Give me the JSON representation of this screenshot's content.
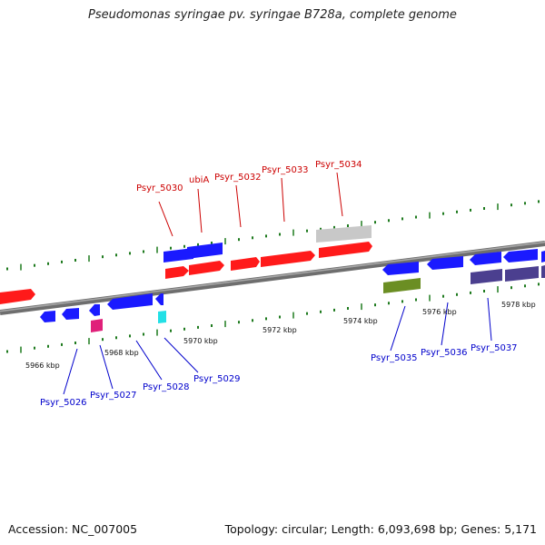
{
  "title": "Pseudomonas syringae pv. syringae B728a, complete genome",
  "footer": {
    "accession": "Accession: NC_007005",
    "summary": "Topology: circular; Length: 6,093,698 bp; Genes: 5,171"
  },
  "colors": {
    "forward_cds": "#ff1a1a",
    "forward_label": "#cc0000",
    "reverse_cds": "#1a1aff",
    "reverse_label": "#0000cc",
    "backbone": "#8a8a8a",
    "tick": "#1e7a1e",
    "gray_feature": "#c8c8c8",
    "olive_feature": "#6b8e23",
    "slate_feature": "#4b3f8f",
    "magenta_feature": "#e0207a",
    "cyan_feature": "#22e0e6"
  },
  "axis": {
    "tick_labels": [
      "5966 kbp",
      "5968 kbp",
      "5970 kbp",
      "5972 kbp",
      "5974 kbp",
      "5976 kbp",
      "5978 kbp"
    ]
  },
  "genes": {
    "forward": [
      "Psyr_5030",
      "ubiA",
      "Psyr_5032",
      "Psyr_5033",
      "Psyr_5034"
    ],
    "reverse": [
      "Psyr_5026",
      "Psyr_5027",
      "Psyr_5028",
      "Psyr_5029",
      "Psyr_5035",
      "Psyr_5036",
      "Psyr_5037"
    ]
  }
}
